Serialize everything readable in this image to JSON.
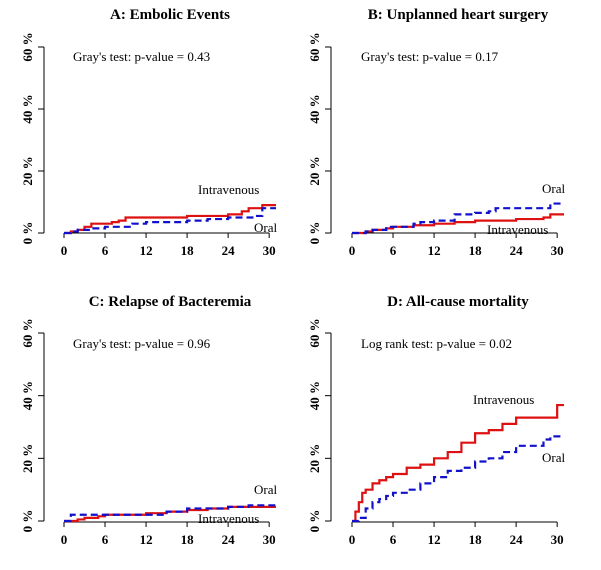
{
  "chart_data": [
    {
      "type": "line",
      "title": "A: Embolic Events",
      "annotation": "Gray's test: p-value = 0.43",
      "xticks": [
        "0",
        "6",
        "12",
        "18",
        "24",
        "30"
      ],
      "yticks": [
        "0 %",
        "20 %",
        "40 %",
        "60 %"
      ],
      "xlim": [
        0,
        31
      ],
      "ylim": [
        0,
        60
      ],
      "series": [
        {
          "name": "Intravenous",
          "color": "#dd1111",
          "dash": false,
          "x": [
            0,
            1,
            2,
            3,
            4,
            5,
            6,
            7,
            8,
            9,
            12,
            15,
            18,
            21,
            24,
            26,
            27,
            28,
            29,
            31
          ],
          "y": [
            0,
            0.5,
            1,
            2,
            3,
            3,
            3,
            3.5,
            4,
            5,
            5,
            5,
            5.5,
            5.5,
            6,
            7,
            8,
            8,
            9,
            9
          ]
        },
        {
          "name": "Oral",
          "color": "#1111cc",
          "dash": true,
          "x": [
            0,
            1,
            2,
            3,
            4,
            5,
            6,
            8,
            10,
            12,
            15,
            18,
            21,
            24,
            26,
            28,
            29,
            31
          ],
          "y": [
            0,
            0.5,
            1,
            1,
            1.5,
            1.5,
            2,
            2,
            3,
            3.5,
            3.5,
            4,
            4.5,
            5,
            5,
            5.5,
            8,
            8
          ]
        }
      ]
    },
    {
      "type": "line",
      "title": "B: Unplanned heart surgery",
      "annotation": "Gray's test: p-value = 0.17",
      "xticks": [
        "0",
        "6",
        "12",
        "18",
        "24",
        "30"
      ],
      "yticks": [
        "0 %",
        "20 %",
        "40 %",
        "60 %"
      ],
      "xlim": [
        0,
        31
      ],
      "ylim": [
        0,
        60
      ],
      "series": [
        {
          "name": "Intravenous",
          "color": "#dd1111",
          "dash": false,
          "x": [
            0,
            2,
            3,
            5,
            6,
            9,
            12,
            15,
            18,
            21,
            24,
            26,
            28,
            29,
            31
          ],
          "y": [
            0,
            0.5,
            1,
            1.5,
            2,
            2.5,
            3,
            3.5,
            4,
            4,
            4.5,
            4.5,
            5,
            6,
            6
          ]
        },
        {
          "name": "Oral",
          "color": "#1111cc",
          "dash": true,
          "x": [
            0,
            2,
            3,
            5,
            6,
            9,
            10,
            12,
            15,
            18,
            20,
            21,
            24,
            27,
            29,
            31
          ],
          "y": [
            0,
            0.5,
            1,
            2,
            2,
            3,
            3.5,
            4,
            6,
            6.5,
            7,
            8,
            8,
            8,
            9.5,
            9.5
          ]
        }
      ]
    },
    {
      "type": "line",
      "title": "C: Relapse of Bacteremia",
      "annotation": "Gray's test: p-value = 0.96",
      "xticks": [
        "0",
        "6",
        "12",
        "18",
        "24",
        "30"
      ],
      "yticks": [
        "0 %",
        "20 %",
        "40 %",
        "60 %"
      ],
      "xlim": [
        0,
        31
      ],
      "ylim": [
        0,
        60
      ],
      "series": [
        {
          "name": "Intravenous",
          "color": "#dd1111",
          "dash": false,
          "x": [
            0,
            2,
            3,
            4,
            5,
            6,
            9,
            12,
            15,
            18,
            21,
            24,
            27,
            31
          ],
          "y": [
            0,
            0.5,
            1,
            1,
            1.5,
            2,
            2,
            2.5,
            3,
            3.5,
            4,
            4.5,
            4.5,
            4.5
          ]
        },
        {
          "name": "Oral",
          "color": "#1111cc",
          "dash": true,
          "x": [
            0,
            1,
            3,
            6,
            9,
            12,
            15,
            18,
            21,
            24,
            27,
            31
          ],
          "y": [
            0,
            2,
            2,
            2,
            2,
            2,
            3,
            4,
            4,
            4.5,
            5,
            5
          ]
        }
      ]
    },
    {
      "type": "line",
      "title": "D: All-cause mortality",
      "annotation": "Log rank test: p-value = 0.02",
      "xticks": [
        "0",
        "6",
        "12",
        "18",
        "24",
        "30"
      ],
      "yticks": [
        "0 %",
        "20 %",
        "40 %",
        "60 %"
      ],
      "xlim": [
        0,
        31
      ],
      "ylim": [
        0,
        60
      ],
      "series": [
        {
          "name": "Intravenous",
          "color": "#dd1111",
          "dash": false,
          "x": [
            0,
            0.5,
            1,
            1.5,
            2,
            3,
            4,
            5,
            6,
            8,
            10,
            12,
            14,
            16,
            18,
            20,
            22,
            24,
            26,
            28,
            30,
            31
          ],
          "y": [
            0,
            3,
            6,
            9,
            10,
            12,
            13,
            14,
            15,
            17,
            18,
            20,
            22,
            25,
            28,
            29,
            31,
            33,
            33,
            33,
            37,
            37
          ]
        },
        {
          "name": "Oral",
          "color": "#1111cc",
          "dash": true,
          "x": [
            0,
            1,
            2,
            3,
            4,
            5,
            6,
            8,
            10,
            12,
            14,
            16,
            18,
            20,
            22,
            24,
            26,
            28,
            29,
            31
          ],
          "y": [
            0,
            1,
            4,
            6,
            7,
            8,
            9,
            10,
            12,
            14,
            16,
            17,
            19,
            20,
            22,
            24,
            24,
            26,
            27,
            27
          ]
        }
      ]
    }
  ]
}
